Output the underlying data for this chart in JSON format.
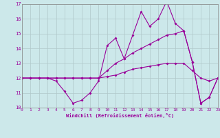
{
  "x": [
    0,
    1,
    2,
    3,
    4,
    5,
    6,
    7,
    8,
    9,
    10,
    11,
    12,
    13,
    14,
    15,
    16,
    17,
    18,
    19,
    20,
    21,
    22,
    23
  ],
  "line1": [
    12,
    12,
    12,
    12,
    11.8,
    11.1,
    10.3,
    10.5,
    11.0,
    11.8,
    14.2,
    14.7,
    13.3,
    14.9,
    16.5,
    15.5,
    16.0,
    17.2,
    15.7,
    15.2,
    13.1,
    10.3,
    10.7,
    12.0
  ],
  "line2": [
    12,
    12,
    12,
    12,
    12,
    12,
    12,
    12,
    12,
    12,
    12.5,
    13.0,
    13.3,
    13.7,
    14.0,
    14.3,
    14.6,
    14.9,
    15.0,
    15.2,
    13.1,
    10.3,
    10.7,
    12.0
  ],
  "line3": [
    12,
    12,
    12,
    12,
    12,
    12,
    12,
    12,
    12,
    12,
    12.1,
    12.2,
    12.4,
    12.6,
    12.7,
    12.8,
    12.9,
    13.0,
    13.0,
    13.0,
    12.5,
    12.0,
    11.8,
    12.0
  ],
  "bg_color": "#cce8ea",
  "line_color": "#990099",
  "grid_color": "#b0c8ca",
  "xlabel": "Windchill (Refroidissement éolien,°C)",
  "ylim": [
    10,
    17
  ],
  "xlim": [
    0,
    23
  ],
  "yticks": [
    10,
    11,
    12,
    13,
    14,
    15,
    16,
    17
  ],
  "xticks": [
    0,
    1,
    2,
    3,
    4,
    5,
    6,
    7,
    8,
    9,
    10,
    11,
    12,
    13,
    14,
    15,
    16,
    17,
    18,
    19,
    20,
    21,
    22,
    23
  ]
}
